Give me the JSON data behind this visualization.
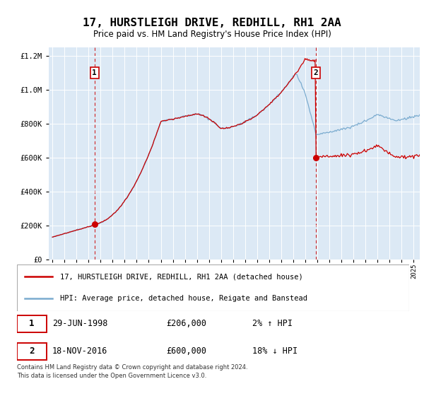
{
  "title": "17, HURSTLEIGH DRIVE, REDHILL, RH1 2AA",
  "subtitle": "Price paid vs. HM Land Registry's House Price Index (HPI)",
  "legend_line1": "17, HURSTLEIGH DRIVE, REDHILL, RH1 2AA (detached house)",
  "legend_line2": "HPI: Average price, detached house, Reigate and Banstead",
  "annotation1_date": "29-JUN-1998",
  "annotation1_price": "£206,000",
  "annotation1_hpi": "2% ↑ HPI",
  "annotation1_year": 1998.5,
  "annotation1_value": 206000,
  "annotation2_date": "18-NOV-2016",
  "annotation2_price": "£600,000",
  "annotation2_hpi": "18% ↓ HPI",
  "annotation2_year": 2016.88,
  "annotation2_value": 600000,
  "footer": "Contains HM Land Registry data © Crown copyright and database right 2024.\nThis data is licensed under the Open Government Licence v3.0.",
  "bg_color": "#dce9f5",
  "red_color": "#cc0000",
  "blue_color": "#7aabcf",
  "ylim_max": 1250000,
  "xlim_start": 1994.7,
  "xlim_end": 2025.5
}
